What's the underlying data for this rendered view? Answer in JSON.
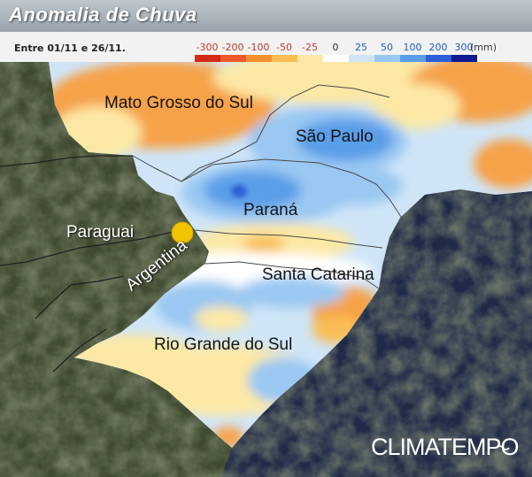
{
  "header": {
    "title": "Anomalia de Chuva",
    "period": "Entre 01/11 e 26/11."
  },
  "legend": {
    "unit": "(mm)",
    "ticks": [
      "-300",
      "-200",
      "-100",
      "-50",
      "-25",
      "0",
      "25",
      "50",
      "100",
      "200",
      "300"
    ],
    "negative_label_color": "#c0392b",
    "positive_label_color": "#1f5fbf",
    "swatch_colors": [
      "#d42a1a",
      "#ee5a2a",
      "#f7912f",
      "#f9bd52",
      "#fce8a4",
      "#ffffff",
      "#cfe5f7",
      "#9ac8f2",
      "#5a9ee8",
      "#2c5fd6",
      "#101a8c"
    ]
  },
  "map": {
    "places": [
      {
        "id": "mato-grosso-do-sul",
        "label": "Mato Grosso do Sul"
      },
      {
        "id": "sao-paulo",
        "label": "São Paulo"
      },
      {
        "id": "parana",
        "label": "Paraná"
      },
      {
        "id": "paraguai",
        "label": "Paraguai"
      },
      {
        "id": "argentina",
        "label": "Argentina"
      },
      {
        "id": "santa-catarina",
        "label": "Santa Catarina"
      },
      {
        "id": "rio-grande-do-sul",
        "label": "Rio Grande do Sul"
      }
    ],
    "colors": {
      "ocean": "#1f2a48",
      "land_outside": "#3f4a30",
      "dry_strong": "#f6a24a",
      "dry_light": "#fce8a4",
      "wet_light": "#cfe5f7",
      "wet_mid": "#9ac8f2",
      "wet_strong": "#5a9ee8",
      "marker": "#f2c400"
    }
  },
  "brand": {
    "name": "CLIMATEMPO"
  }
}
